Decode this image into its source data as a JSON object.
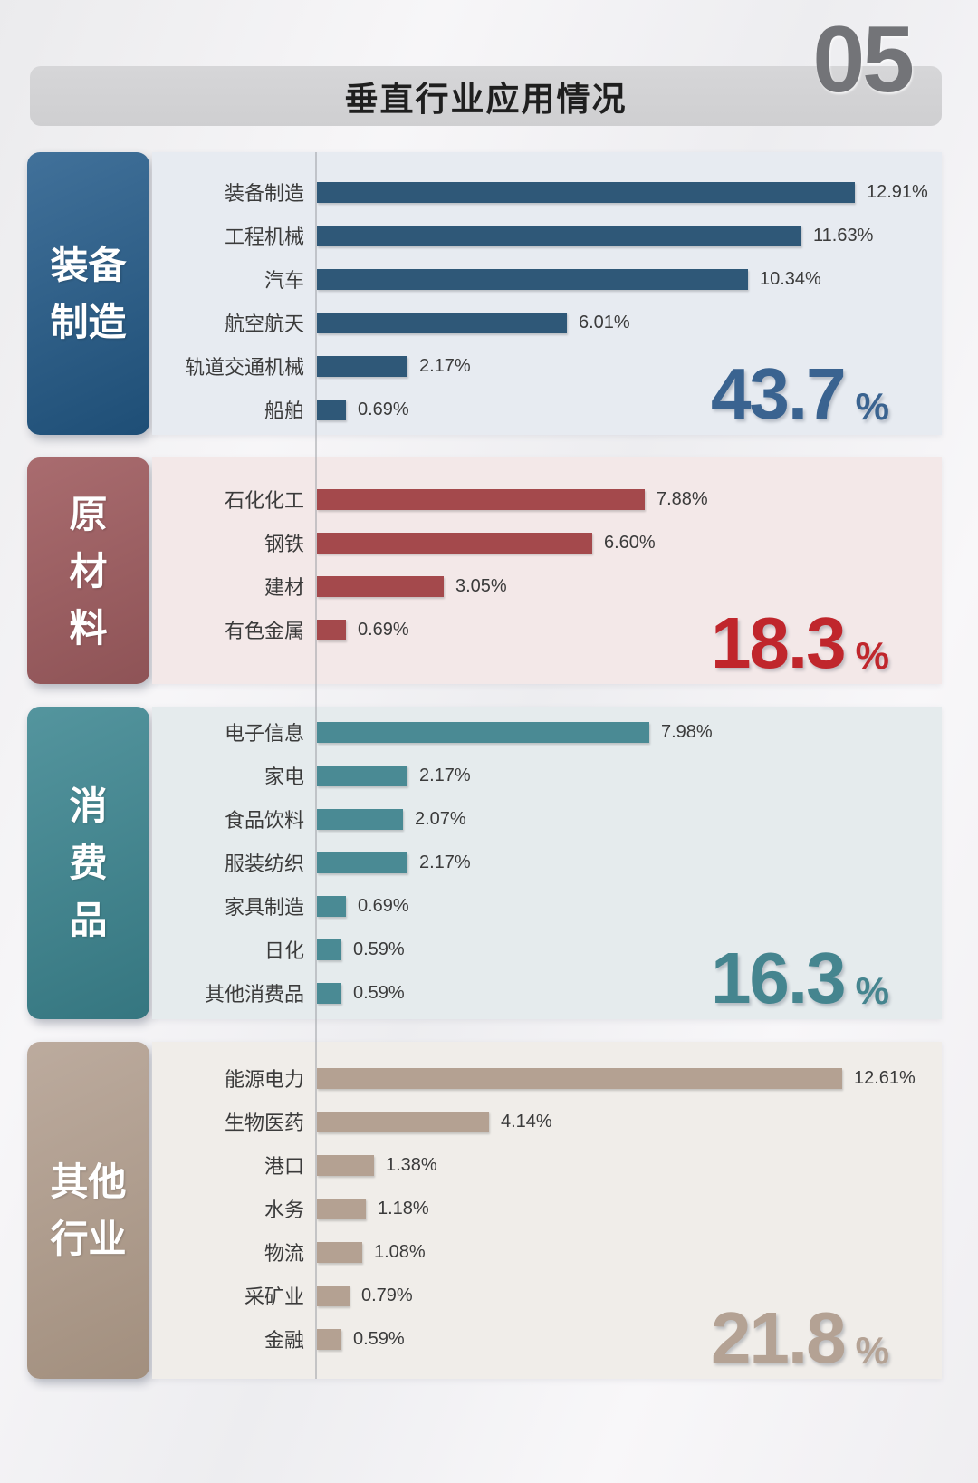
{
  "page_number": "05",
  "title": "垂直行业应用情况",
  "chart_data": {
    "type": "bar",
    "orientation": "horizontal",
    "value_unit": "%",
    "groups": [
      {
        "key": "equipment-manufacturing",
        "name": "装备制造",
        "sidebar_lines": [
          "装备",
          "制造"
        ],
        "total_display": "43.7",
        "colors": {
          "bar": "#2f5878",
          "panel_bg": "#e7ebf1",
          "sidebar_from": "#41719a",
          "sidebar_to": "#1e4e76",
          "accent": "#3a6390"
        },
        "items": [
          {
            "label": "装备制造",
            "value": 12.91,
            "display": "12.91%"
          },
          {
            "label": "工程机械",
            "value": 11.63,
            "display": "11.63%"
          },
          {
            "label": "汽车",
            "value": 10.34,
            "display": "10.34%"
          },
          {
            "label": "航空航天",
            "value": 6.01,
            "display": "6.01%"
          },
          {
            "label": "轨道交通机械",
            "value": 2.17,
            "display": "2.17%"
          },
          {
            "label": "船舶",
            "value": 0.69,
            "display": "0.69%"
          }
        ]
      },
      {
        "key": "raw-materials",
        "name": "原材料",
        "sidebar_lines": [
          "原",
          "材",
          "料"
        ],
        "total_display": "18.3",
        "colors": {
          "bar": "#a4494c",
          "panel_bg": "#f3e8e8",
          "sidebar_from": "#a96c6f",
          "sidebar_to": "#8e5356",
          "accent": "#c0262c"
        },
        "items": [
          {
            "label": "石化化工",
            "value": 7.88,
            "display": "7.88%"
          },
          {
            "label": "钢铁",
            "value": 6.6,
            "display": "6.60%"
          },
          {
            "label": "建材",
            "value": 3.05,
            "display": "3.05%"
          },
          {
            "label": "有色金属",
            "value": 0.69,
            "display": "0.69%"
          }
        ]
      },
      {
        "key": "consumer-goods",
        "name": "消费品",
        "sidebar_lines": [
          "消",
          "费",
          "品"
        ],
        "total_display": "16.3",
        "colors": {
          "bar": "#4a8a94",
          "panel_bg": "#e5ebed",
          "sidebar_from": "#54959e",
          "sidebar_to": "#357680",
          "accent": "#45858f"
        },
        "items": [
          {
            "label": "电子信息",
            "value": 7.98,
            "display": "7.98%"
          },
          {
            "label": "家电",
            "value": 2.17,
            "display": "2.17%"
          },
          {
            "label": "食品饮料",
            "value": 2.07,
            "display": "2.07%"
          },
          {
            "label": "服装纺织",
            "value": 2.17,
            "display": "2.17%"
          },
          {
            "label": "家具制造",
            "value": 0.69,
            "display": "0.69%"
          },
          {
            "label": "日化",
            "value": 0.59,
            "display": "0.59%"
          },
          {
            "label": "其他消费品",
            "value": 0.59,
            "display": "0.59%"
          }
        ]
      },
      {
        "key": "other-industries",
        "name": "其他行业",
        "sidebar_lines": [
          "其他",
          "行业"
        ],
        "total_display": "21.8",
        "colors": {
          "bar": "#b4a192",
          "panel_bg": "#f0ede9",
          "sidebar_from": "#bcab9e",
          "sidebar_to": "#a28f7e",
          "accent": "#b4a294"
        },
        "items": [
          {
            "label": "能源电力",
            "value": 12.61,
            "display": "12.61%"
          },
          {
            "label": "生物医药",
            "value": 4.14,
            "display": "4.14%"
          },
          {
            "label": "港口",
            "value": 1.38,
            "display": "1.38%"
          },
          {
            "label": "水务",
            "value": 1.18,
            "display": "1.18%"
          },
          {
            "label": "物流",
            "value": 1.08,
            "display": "1.08%"
          },
          {
            "label": "采矿业",
            "value": 0.79,
            "display": "0.79%"
          },
          {
            "label": "金融",
            "value": 0.59,
            "display": "0.59%"
          }
        ]
      }
    ]
  }
}
